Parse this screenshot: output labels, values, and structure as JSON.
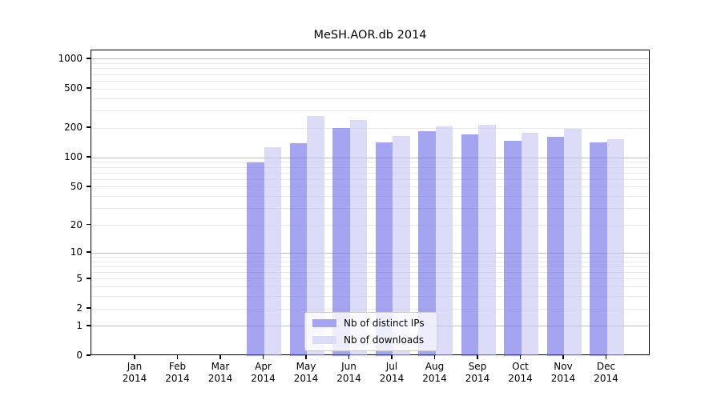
{
  "chart_data": {
    "type": "bar",
    "title": "MeSH.AOR.db 2014",
    "xlabel": "",
    "ylabel": "",
    "yscale": "log(value+1)",
    "ylim": [
      0,
      1230
    ],
    "y_ticks": [
      0,
      1,
      2,
      5,
      10,
      20,
      50,
      100,
      200,
      500,
      1000
    ],
    "grid": "horizontal major and minor gridlines",
    "legend_position": "lower center",
    "categories": [
      {
        "month": "Jan",
        "year": "2014"
      },
      {
        "month": "Feb",
        "year": "2014"
      },
      {
        "month": "Mar",
        "year": "2014"
      },
      {
        "month": "Apr",
        "year": "2014"
      },
      {
        "month": "May",
        "year": "2014"
      },
      {
        "month": "Jun",
        "year": "2014"
      },
      {
        "month": "Jul",
        "year": "2014"
      },
      {
        "month": "Aug",
        "year": "2014"
      },
      {
        "month": "Sep",
        "year": "2014"
      },
      {
        "month": "Oct",
        "year": "2014"
      },
      {
        "month": "Nov",
        "year": "2014"
      },
      {
        "month": "Dec",
        "year": "2014"
      }
    ],
    "series": [
      {
        "name": "Nb of distinct IPs",
        "bar_color": "rgba(103,103,230,0.6)",
        "swatch_color": "#a4a4f1",
        "values": [
          0,
          0,
          0,
          90,
          140,
          200,
          143,
          186,
          174,
          148,
          162,
          143
        ]
      },
      {
        "name": "Nb of downloads",
        "bar_color": "rgba(197,197,244,0.6)",
        "swatch_color": "#dcdcf8",
        "values": [
          0,
          0,
          0,
          127,
          265,
          243,
          166,
          210,
          218,
          181,
          196,
          154
        ]
      }
    ],
    "colors": {
      "grid_major": "#bdbdbd",
      "grid_minor": "#e9e9e9",
      "spine": "#000000",
      "background": "#ffffff"
    }
  }
}
